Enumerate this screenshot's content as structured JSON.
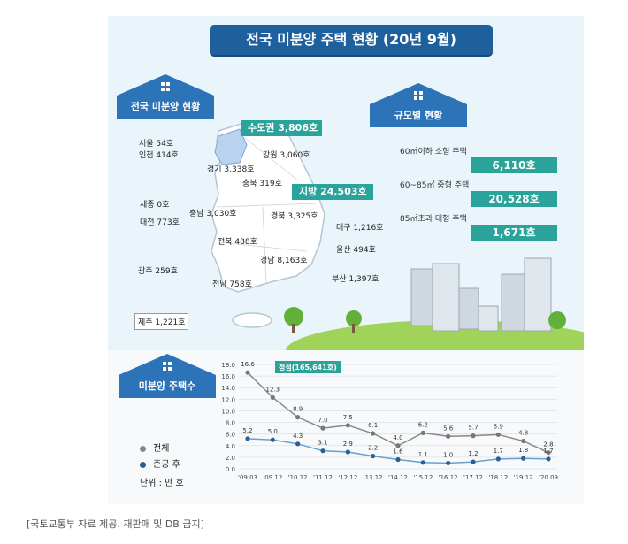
{
  "title": "전국 미분양 주택 현황 (20년 9월)",
  "caption": "[국토교통부 자료 제공. 재판매 및 DB 금지]",
  "map_section": {
    "label": "전국 미분양 현황",
    "capital_label": "수도권 3,806호",
    "local_label": "지방 24,503호",
    "regions": [
      {
        "name": "서울",
        "text": "서울  54호"
      },
      {
        "name": "인천",
        "text": "인천 414호"
      },
      {
        "name": "경기",
        "text": "경기 3,338호"
      },
      {
        "name": "강원",
        "text": "강원 3,060호"
      },
      {
        "name": "충북",
        "text": "충북 319호"
      },
      {
        "name": "세종",
        "text": "세종 0호"
      },
      {
        "name": "충남",
        "text": "충남 3,030호"
      },
      {
        "name": "대전",
        "text": "대전 773호"
      },
      {
        "name": "경북",
        "text": "경북 3,325호"
      },
      {
        "name": "대구",
        "text": "대구 1,216호"
      },
      {
        "name": "전북",
        "text": "전북 488호"
      },
      {
        "name": "울산",
        "text": "울산 494호"
      },
      {
        "name": "경남",
        "text": "경남 8,163호"
      },
      {
        "name": "광주",
        "text": "광주 259호"
      },
      {
        "name": "부산",
        "text": "부산 1,397호"
      },
      {
        "name": "전남",
        "text": "전남 758호"
      },
      {
        "name": "제주",
        "text": "제주 1,221호"
      }
    ]
  },
  "size_section": {
    "label": "규모별 현황",
    "rows": [
      {
        "label": "60㎡이하 소형 주택",
        "value": "6,110호"
      },
      {
        "label": "60~85㎡ 중형 주택",
        "value": "20,528호"
      },
      {
        "label": "85㎡초과 대형 주택",
        "value": "1,671호"
      }
    ]
  },
  "trend_section": {
    "label": "미분양 주택수",
    "legend": [
      "전체",
      "준공 후"
    ],
    "unit": "단위 : 만 호",
    "peak_label": "정점(165,641호)"
  },
  "colors": {
    "title_bg": "#1e5f9e",
    "house_blue": "#2d73b8",
    "teal": "#2aa39a",
    "total_line": "#888888",
    "completed_line": "#6a9fd0"
  },
  "chart_data": {
    "type": "line",
    "categories": [
      "'09.03",
      "'09.12",
      "'10.12",
      "'11.12",
      "'12.12",
      "'13.12",
      "'14.12",
      "'15.12",
      "'16.12",
      "'17.12",
      "'18.12",
      "'19.12",
      "'20.09"
    ],
    "series": [
      {
        "name": "전체",
        "values": [
          16.6,
          12.3,
          8.9,
          7.0,
          7.5,
          6.1,
          4.0,
          6.2,
          5.6,
          5.7,
          5.9,
          4.8,
          2.8
        ],
        "labels": [
          "16.6",
          "12.3",
          "8.9",
          "7.0",
          "7.5",
          "6.1",
          "4.0",
          "6.2",
          "5.6",
          "5.7",
          "5.9",
          "4.8",
          "2.8"
        ]
      },
      {
        "name": "준공 후",
        "values": [
          5.2,
          5.0,
          4.3,
          3.1,
          2.9,
          2.2,
          1.6,
          1.1,
          1.0,
          1.2,
          1.7,
          1.8,
          1.7
        ],
        "labels": [
          "5.2",
          "5.0",
          "4.3",
          "3.1",
          "2.9",
          "2.2",
          "1.6",
          "1.1",
          "1.0",
          "1.2",
          "1.7",
          "1.8",
          "1.7"
        ]
      }
    ],
    "yticks": [
      "0.0",
      "2.0",
      "4.0",
      "6.0",
      "8.0",
      "10.0",
      "12.0",
      "14.0",
      "16.0",
      "18.0"
    ],
    "ylim": [
      0,
      18
    ],
    "grid": true
  }
}
